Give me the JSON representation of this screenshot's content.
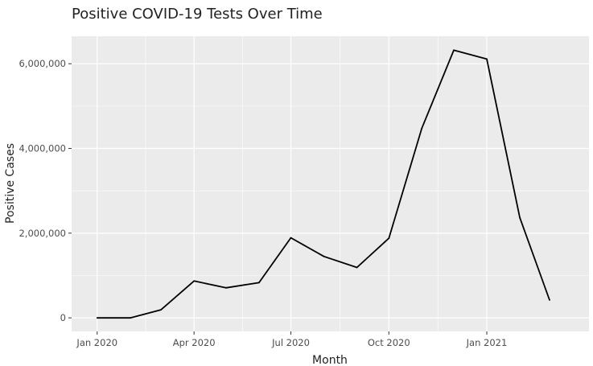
{
  "chart_data": {
    "type": "line",
    "title": "Positive COVID-19 Tests Over Time",
    "xlabel": "Month",
    "ylabel": "Positive Cases",
    "x": [
      "2020-01",
      "2020-02",
      "2020-03",
      "2020-04",
      "2020-05",
      "2020-06",
      "2020-07",
      "2020-08",
      "2020-09",
      "2020-10",
      "2020-11",
      "2020-12",
      "2021-01",
      "2021-02",
      "2021-03"
    ],
    "series": [
      {
        "values": [
          0,
          0,
          190000,
          870000,
          710000,
          830000,
          1890000,
          1450000,
          1190000,
          1880000,
          4480000,
          6320000,
          6110000,
          2370000,
          420000
        ]
      }
    ],
    "x_ticks": [
      {
        "label": "Jan 2020",
        "at": "2020-01"
      },
      {
        "label": "Apr 2020",
        "at": "2020-04"
      },
      {
        "label": "Jul 2020",
        "at": "2020-07"
      },
      {
        "label": "Oct 2020",
        "at": "2020-10"
      },
      {
        "label": "Jan 2021",
        "at": "2021-01"
      }
    ],
    "y_ticks": [
      {
        "label": "0",
        "value": 0
      },
      {
        "label": "2,000,000",
        "value": 2000000
      },
      {
        "label": "4,000,000",
        "value": 4000000
      },
      {
        "label": "6,000,000",
        "value": 6000000
      }
    ],
    "xlim": [
      "2019-12-08",
      "2021-04-07"
    ],
    "ylim": [
      -320000,
      6650000
    ],
    "grid": true,
    "legend": "none",
    "colors": {
      "panel": "#ebebeb",
      "grid": "#ffffff",
      "line": "#000000"
    }
  }
}
